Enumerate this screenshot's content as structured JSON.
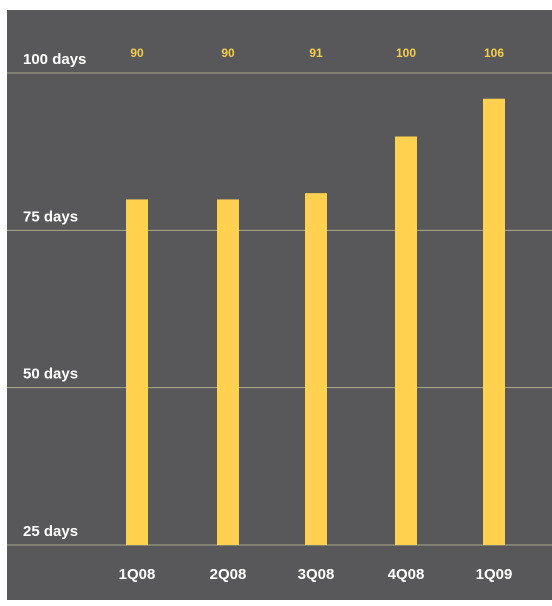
{
  "chart_data": {
    "type": "bar",
    "title": "",
    "xlabel": "",
    "ylabel": "",
    "categories": [
      "1Q08",
      "2Q08",
      "3Q08",
      "4Q08",
      "1Q09"
    ],
    "values": [
      90,
      90,
      91,
      100,
      106
    ],
    "data_labels": [
      "90",
      "90",
      "91",
      "100",
      "106"
    ],
    "y_ticks": [
      {
        "value": 100,
        "label": "100 days"
      },
      {
        "value": 75,
        "label": "75 days"
      },
      {
        "value": 50,
        "label": "50 days"
      },
      {
        "value": 25,
        "label": "25 days"
      }
    ],
    "ylim": [
      25,
      100
    ],
    "grid": true,
    "legend": "none",
    "colors": {
      "background": "#58585a",
      "bar": "#ffd14f",
      "gridline": "#a9a98a",
      "data_label": "#f7cd4b",
      "tick_label": "#ffffff"
    }
  }
}
